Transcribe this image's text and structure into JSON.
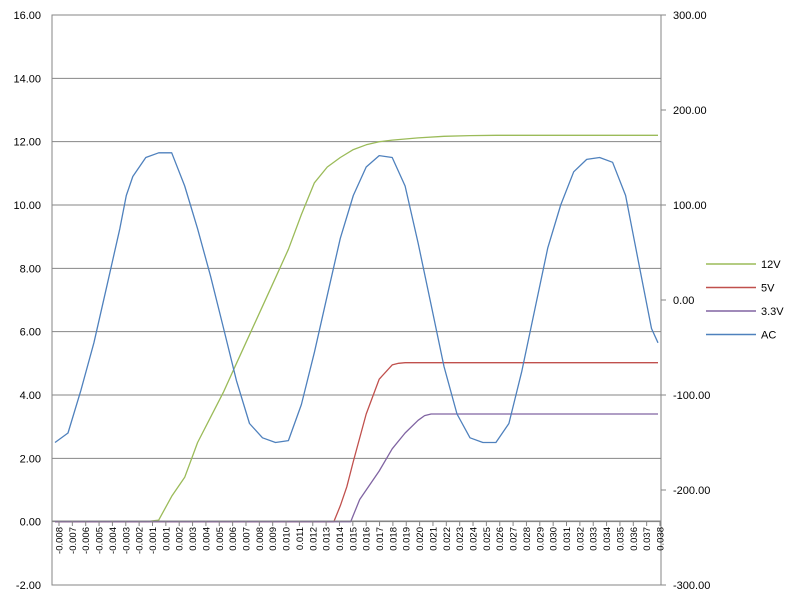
{
  "chart_data": {
    "type": "line",
    "title": "",
    "xlabel": "",
    "ylabel": "",
    "y2label": "",
    "grid": true,
    "legend_position": "right",
    "xlim": [
      -0.008,
      0.0385
    ],
    "ylim": [
      -2,
      16
    ],
    "y2lim": [
      -300,
      300
    ],
    "y_ticks": [
      "-2.00",
      "0.00",
      "2.00",
      "4.00",
      "6.00",
      "8.00",
      "10.00",
      "12.00",
      "14.00",
      "16.00"
    ],
    "y2_ticks": [
      "-300.00",
      "-200.00",
      "-100.00",
      "0.00",
      "100.00",
      "200.00",
      "300.00"
    ],
    "x_ticks": [
      "-0.008",
      "-0.007",
      "-0.006",
      "-0.005",
      "-0.004",
      "-0.003",
      "-0.002",
      "-0.001",
      "0.001",
      "0.002",
      "0.003",
      "0.004",
      "0.005",
      "0.006",
      "0.007",
      "0.008",
      "0.009",
      "0.010",
      "0.011",
      "0.012",
      "0.013",
      "0.014",
      "0.015",
      "0.016",
      "0.017",
      "0.018",
      "0.019",
      "0.020",
      "0.021",
      "0.022",
      "0.023",
      "0.024",
      "0.025",
      "0.026",
      "0.027",
      "0.028",
      "0.029",
      "0.030",
      "0.031",
      "0.032",
      "0.033",
      "0.034",
      "0.035",
      "0.036",
      "0.037",
      "0.038"
    ],
    "series": [
      {
        "name": "12V",
        "axis": "left",
        "color": "#9bbb59",
        "x": [
          -0.008,
          -0.001,
          0.0,
          0.001,
          0.002,
          0.003,
          0.004,
          0.005,
          0.006,
          0.007,
          0.008,
          0.009,
          0.01,
          0.011,
          0.012,
          0.013,
          0.014,
          0.015,
          0.016,
          0.017,
          0.018,
          0.02,
          0.022,
          0.024,
          0.026,
          0.03,
          0.034,
          0.0385
        ],
        "values": [
          0.0,
          0.0,
          0.05,
          0.8,
          1.4,
          2.5,
          3.3,
          4.1,
          5.0,
          5.9,
          6.8,
          7.7,
          8.6,
          9.7,
          10.7,
          11.2,
          11.5,
          11.75,
          11.9,
          12.0,
          12.05,
          12.12,
          12.17,
          12.19,
          12.2,
          12.2,
          12.2,
          12.2
        ]
      },
      {
        "name": "5V",
        "axis": "left",
        "color": "#c0504d",
        "x": [
          -0.008,
          0.013,
          0.0135,
          0.014,
          0.0145,
          0.015,
          0.016,
          0.017,
          0.018,
          0.0185,
          0.019,
          0.02,
          0.03,
          0.0385
        ],
        "values": [
          0.0,
          0.0,
          0.0,
          0.5,
          1.1,
          1.9,
          3.4,
          4.5,
          4.95,
          5.0,
          5.02,
          5.02,
          5.02,
          5.02
        ]
      },
      {
        "name": "3.3V",
        "axis": "left",
        "color": "#8064a2",
        "x": [
          -0.008,
          0.0148,
          0.015,
          0.0155,
          0.016,
          0.017,
          0.018,
          0.019,
          0.02,
          0.0205,
          0.021,
          0.022,
          0.03,
          0.0385
        ],
        "values": [
          0.0,
          0.0,
          0.2,
          0.7,
          1.0,
          1.6,
          2.3,
          2.8,
          3.2,
          3.35,
          3.4,
          3.4,
          3.4,
          3.4
        ]
      },
      {
        "name": "AC",
        "axis": "right",
        "color": "#4f81bd",
        "x": [
          -0.008,
          -0.007,
          -0.006,
          -0.005,
          -0.004,
          -0.003,
          -0.0025,
          -0.002,
          -0.001,
          0.0,
          0.001,
          0.002,
          0.003,
          0.004,
          0.005,
          0.006,
          0.007,
          0.008,
          0.009,
          0.01,
          0.011,
          0.012,
          0.013,
          0.014,
          0.015,
          0.016,
          0.017,
          0.018,
          0.019,
          0.02,
          0.021,
          0.022,
          0.023,
          0.024,
          0.025,
          0.026,
          0.027,
          0.028,
          0.029,
          0.03,
          0.031,
          0.032,
          0.033,
          0.034,
          0.035,
          0.036,
          0.037,
          0.038,
          0.0385
        ],
        "values": [
          -150,
          -140,
          -95,
          -45,
          15,
          75,
          110,
          130,
          150,
          155,
          155,
          120,
          75,
          25,
          -30,
          -85,
          -130,
          -145,
          -150,
          -148,
          -110,
          -55,
          5,
          65,
          110,
          140,
          152,
          150,
          120,
          60,
          -5,
          -70,
          -120,
          -145,
          -150,
          -150,
          -130,
          -75,
          -10,
          55,
          100,
          135,
          148,
          150,
          145,
          110,
          40,
          -30,
          -45
        ]
      }
    ]
  }
}
